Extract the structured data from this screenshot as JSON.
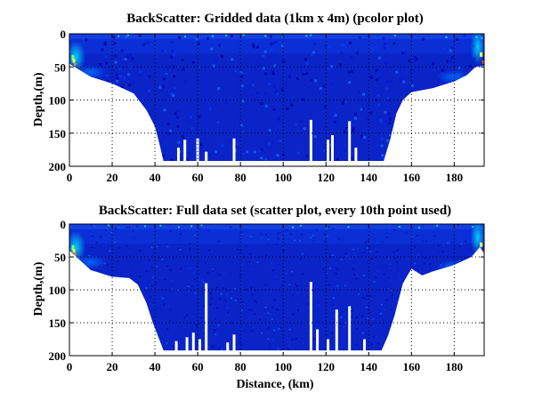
{
  "chart_data": [
    {
      "type": "heatmap",
      "title": "BackScatter: Gridded data (1km x 4m) (pcolor plot)",
      "xlabel": "",
      "ylabel": "Depth,(m)",
      "xlim": [
        0,
        194
      ],
      "ylim": [
        200,
        0
      ],
      "xticks": [
        0,
        20,
        40,
        60,
        80,
        100,
        120,
        140,
        160,
        180
      ],
      "yticks": [
        0,
        50,
        100,
        150,
        200
      ],
      "grid": true,
      "bottom_profile": {
        "distance_km": [
          0,
          5,
          10,
          20,
          30,
          36,
          40,
          42,
          44,
          147,
          150,
          153,
          156,
          160,
          170,
          180,
          186,
          190,
          194
        ],
        "depth_m": [
          45,
          55,
          65,
          75,
          90,
          115,
          140,
          165,
          192,
          192,
          160,
          120,
          100,
          88,
          82,
          72,
          62,
          50,
          48
        ]
      },
      "gaps": [
        {
          "distance_km": 51,
          "depth_m": 172
        },
        {
          "distance_km": 54,
          "depth_m": 160
        },
        {
          "distance_km": 60,
          "depth_m": 158
        },
        {
          "distance_km": 64,
          "depth_m": 178
        },
        {
          "distance_km": 77,
          "depth_m": 158
        },
        {
          "distance_km": 113,
          "depth_m": 130
        },
        {
          "distance_km": 121,
          "depth_m": 160
        },
        {
          "distance_km": 123,
          "depth_m": 153
        },
        {
          "distance_km": 131,
          "depth_m": 132
        },
        {
          "distance_km": 134,
          "depth_m": 172
        }
      ]
    },
    {
      "type": "scatter",
      "title": "BackScatter: Full data set (scatter plot, every 10th point used)",
      "xlabel": "Distance, (km)",
      "ylabel": "Depth,(m)",
      "xlim": [
        0,
        194
      ],
      "ylim": [
        200,
        0
      ],
      "xticks": [
        0,
        20,
        40,
        60,
        80,
        100,
        120,
        140,
        160,
        180
      ],
      "yticks": [
        0,
        50,
        100,
        150,
        200
      ],
      "grid": true,
      "bottom_profile": {
        "distance_km": [
          0,
          5,
          10,
          20,
          28,
          32,
          36,
          39,
          42,
          44,
          146,
          149,
          152,
          156,
          160,
          165,
          170,
          180,
          188,
          192,
          194
        ],
        "depth_m": [
          40,
          55,
          70,
          80,
          82,
          92,
          120,
          150,
          175,
          192,
          192,
          170,
          140,
          90,
          68,
          78,
          72,
          62,
          50,
          35,
          45
        ]
      },
      "gaps": [
        {
          "distance_km": 50,
          "depth_m": 178
        },
        {
          "distance_km": 55,
          "depth_m": 172
        },
        {
          "distance_km": 58,
          "depth_m": 165
        },
        {
          "distance_km": 61,
          "depth_m": 175
        },
        {
          "distance_km": 64,
          "depth_m": 90
        },
        {
          "distance_km": 74,
          "depth_m": 180
        },
        {
          "distance_km": 77,
          "depth_m": 168
        },
        {
          "distance_km": 113,
          "depth_m": 88
        },
        {
          "distance_km": 116,
          "depth_m": 160
        },
        {
          "distance_km": 121,
          "depth_m": 175
        },
        {
          "distance_km": 125,
          "depth_m": 130
        },
        {
          "distance_km": 131,
          "depth_m": 125
        },
        {
          "distance_km": 138,
          "depth_m": 175
        }
      ]
    }
  ]
}
